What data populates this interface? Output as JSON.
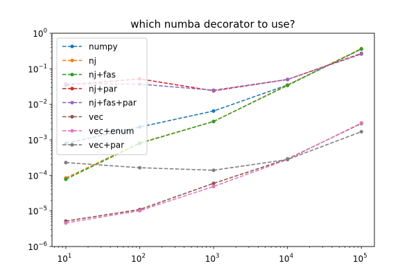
{
  "chart_data": {
    "type": "line",
    "title": "which numba decorator to use?",
    "xlabel": "",
    "ylabel": "",
    "x_scale": "log",
    "y_scale": "log",
    "xlim": [
      6.5,
      150000
    ],
    "ylim": [
      1e-06,
      1
    ],
    "grid": false,
    "legend_position": "upper-left",
    "x": [
      10,
      100,
      1000,
      10000,
      100000
    ],
    "x_ticks": [
      {
        "value": 10,
        "base": "10",
        "exp": "1"
      },
      {
        "value": 100,
        "base": "10",
        "exp": "2"
      },
      {
        "value": 1000,
        "base": "10",
        "exp": "3"
      },
      {
        "value": 10000,
        "base": "10",
        "exp": "4"
      },
      {
        "value": 100000,
        "base": "10",
        "exp": "5"
      }
    ],
    "y_ticks": [
      {
        "value": 1e-06,
        "base": "10",
        "exp": "−6"
      },
      {
        "value": 1e-05,
        "base": "10",
        "exp": "−5"
      },
      {
        "value": 0.0001,
        "base": "10",
        "exp": "−4"
      },
      {
        "value": 0.001,
        "base": "10",
        "exp": "−3"
      },
      {
        "value": 0.01,
        "base": "10",
        "exp": "−2"
      },
      {
        "value": 0.1,
        "base": "10",
        "exp": "−1"
      },
      {
        "value": 1,
        "base": "10",
        "exp": "0"
      }
    ],
    "series": [
      {
        "name": "numpy",
        "color": "#1f77b4",
        "values": [
          0.0008,
          0.0023,
          0.0065,
          0.035,
          0.36
        ]
      },
      {
        "name": "nj",
        "color": "#ff7f0e",
        "values": [
          8.5e-05,
          0.00082,
          0.0033,
          0.035,
          0.37
        ]
      },
      {
        "name": "nj+fas",
        "color": "#2ca02c",
        "values": [
          7.8e-05,
          0.0008,
          0.0033,
          0.034,
          0.36
        ]
      },
      {
        "name": "nj+par",
        "color": "#d62728",
        "values": [
          0.035,
          0.052,
          0.024,
          0.05,
          0.27
        ]
      },
      {
        "name": "nj+fas+par",
        "color": "#9467bd",
        "values": [
          0.038,
          0.037,
          0.025,
          0.05,
          0.26
        ]
      },
      {
        "name": "vec",
        "color": "#8c564b",
        "values": [
          5.2e-06,
          1.1e-05,
          6e-05,
          0.00029,
          0.0029
        ]
      },
      {
        "name": "vec+enum",
        "color": "#e377c2",
        "values": [
          4.6e-06,
          1.02e-05,
          4.9e-05,
          0.00028,
          0.003
        ]
      },
      {
        "name": "vec+par",
        "color": "#7f7f7f",
        "values": [
          0.00023,
          0.000165,
          0.00014,
          0.00028,
          0.0017
        ]
      }
    ]
  }
}
